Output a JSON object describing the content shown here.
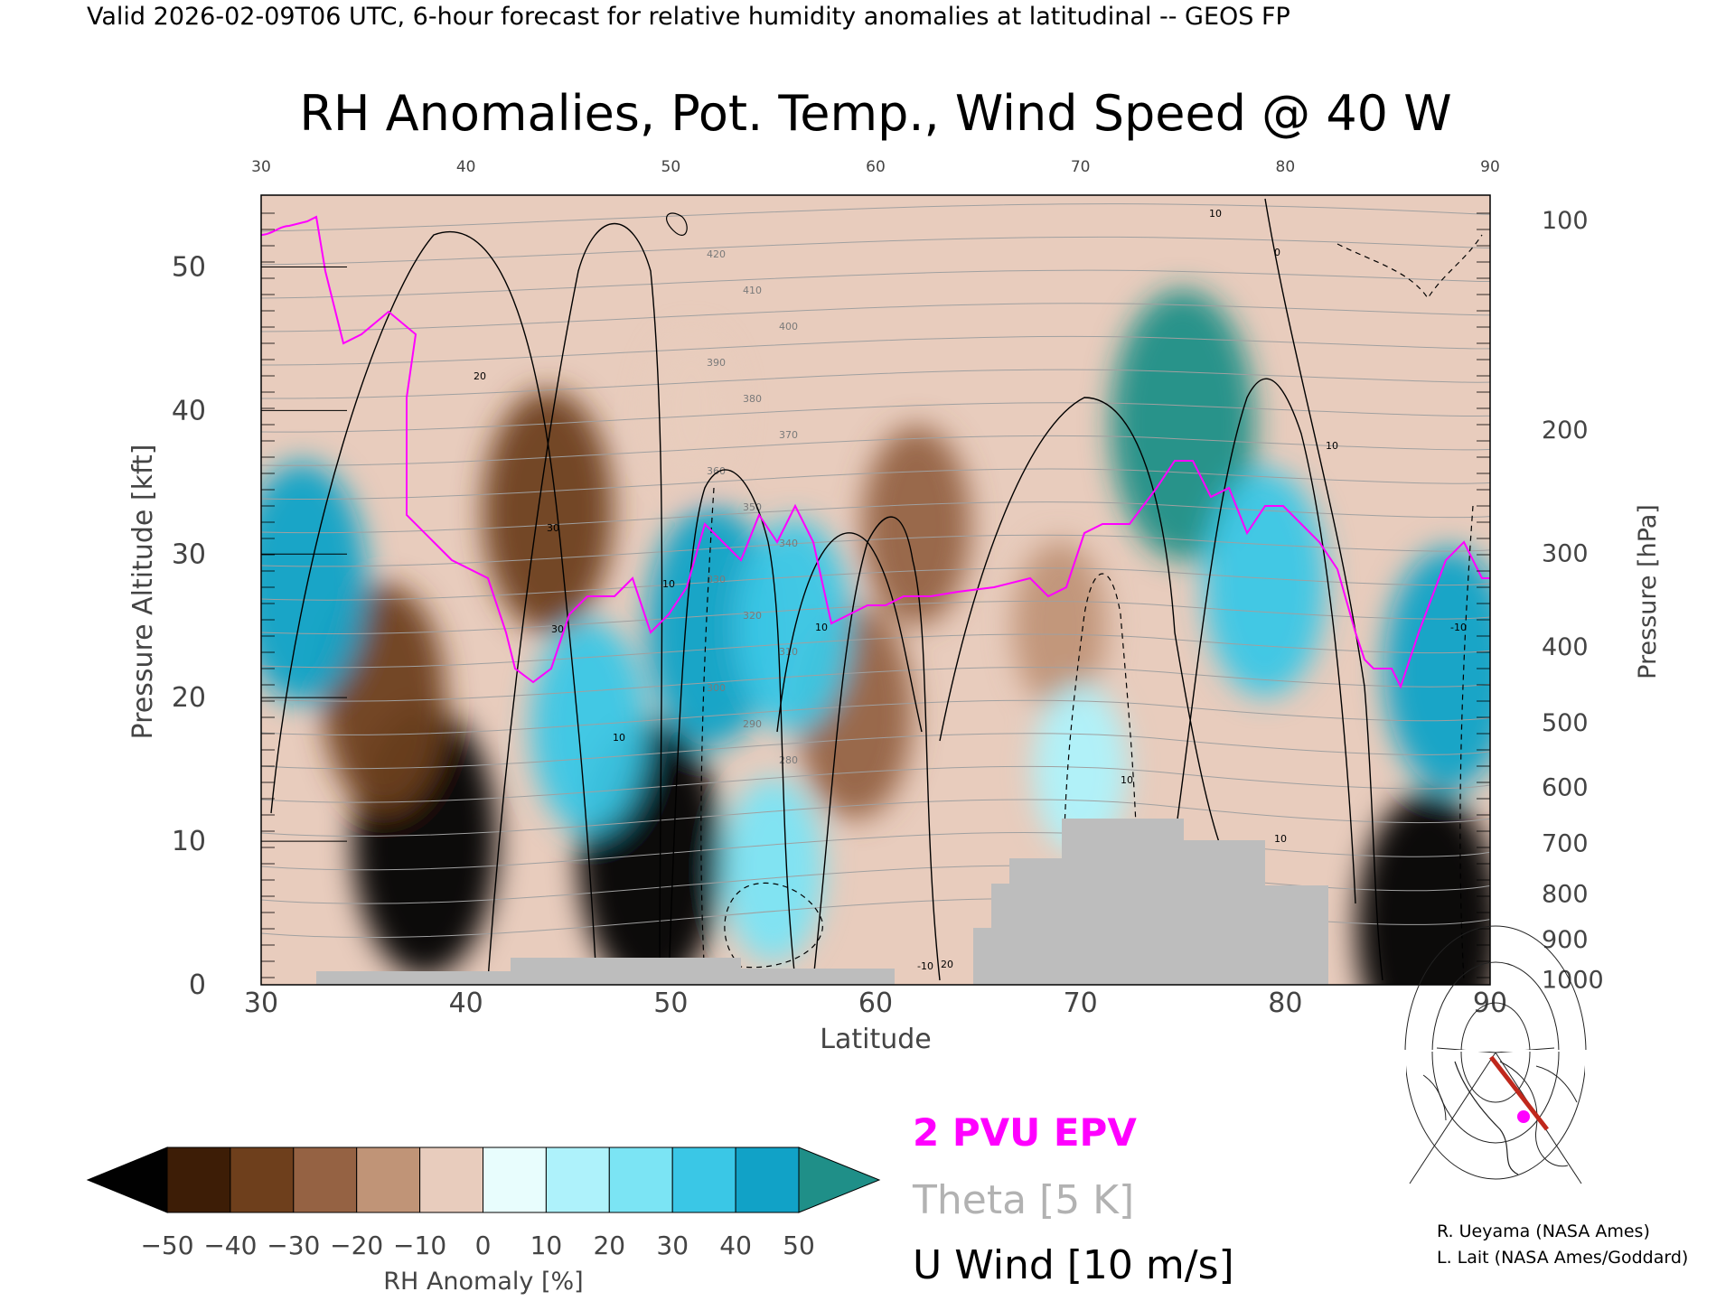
{
  "header": "Valid 2026-02-09T06 UTC, 6-hour forecast for relative humidity anomalies at latitudinal -- GEOS FP",
  "chart_data": {
    "type": "heatmap",
    "title": "RH Anomalies, Pot. Temp., Wind Speed @ 40 W",
    "xlabel": "Latitude",
    "ylabel": "Pressure Altitude [kft]",
    "y2label": "Pressure [hPa]",
    "xlim": [
      30,
      90
    ],
    "ylim": [
      0,
      55
    ],
    "x_ticks": [
      "30",
      "40",
      "50",
      "60",
      "70",
      "80",
      "90"
    ],
    "y_ticks": [
      "0",
      "10",
      "20",
      "30",
      "40",
      "50"
    ],
    "pressure_ticks": [
      {
        "label": "100",
        "kft": 53.3
      },
      {
        "label": "200",
        "kft": 38.7
      },
      {
        "label": "300",
        "kft": 30.1
      },
      {
        "label": "400",
        "kft": 23.6
      },
      {
        "label": "500",
        "kft": 18.3
      },
      {
        "label": "600",
        "kft": 13.8
      },
      {
        "label": "700",
        "kft": 9.9
      },
      {
        "label": "800",
        "kft": 6.4
      },
      {
        "label": "900",
        "kft": 3.2
      },
      {
        "label": "1000",
        "kft": 0.4
      }
    ],
    "colorbar": {
      "label": "RH Anomaly [%]",
      "ticks": [
        "−50",
        "−40",
        "−30",
        "−20",
        "−10",
        "0",
        "10",
        "20",
        "30",
        "40",
        "50"
      ],
      "colors": [
        "#010101",
        "#3d1d06",
        "#6e3f1c",
        "#956243",
        "#c09477",
        "#e8ccbd",
        "#e8fdfd",
        "#aef2fb",
        "#7be4f4",
        "#3ac7e6",
        "#11a2c7",
        "#0d6f94",
        "#1f8f88"
      ]
    },
    "legend": [
      {
        "label": "2 PVU EPV",
        "color": "#ff00ff"
      },
      {
        "label": "Theta [5 K]",
        "color": "#b2b2b2"
      },
      {
        "label": "U Wind [10 m/s]",
        "color": "#000000"
      }
    ],
    "theta_labels": [
      "420",
      "410",
      "400",
      "390",
      "380",
      "370",
      "360",
      "350",
      "340",
      "330",
      "320",
      "310",
      "300",
      "290",
      "280"
    ],
    "wind_labels": [
      "0",
      "10",
      "10",
      "20",
      "30",
      "30",
      "10",
      "10",
      "10",
      "10",
      "10",
      "20",
      "-10",
      "-10"
    ],
    "anomaly_regions": [
      {
        "lat": 38,
        "kft": 10,
        "rh": -55
      },
      {
        "lat": 49,
        "kft": 9,
        "rh": -50
      },
      {
        "lat": 87,
        "kft": 4,
        "rh": -55
      },
      {
        "lat": 44,
        "kft": 33,
        "rh": -40
      },
      {
        "lat": 36,
        "kft": 20,
        "rh": -35
      },
      {
        "lat": 59,
        "kft": 19,
        "rh": -30
      },
      {
        "lat": 62,
        "kft": 32,
        "rh": -25
      },
      {
        "lat": 69,
        "kft": 25,
        "rh": -15
      },
      {
        "lat": 51,
        "kft": 40,
        "rh": -10
      },
      {
        "lat": 75,
        "kft": 39,
        "rh": 60
      },
      {
        "lat": 52,
        "kft": 25,
        "rh": 40
      },
      {
        "lat": 32,
        "kft": 28,
        "rh": 40
      },
      {
        "lat": 79,
        "kft": 28,
        "rh": 35
      },
      {
        "lat": 88,
        "kft": 22,
        "rh": 40
      },
      {
        "lat": 46,
        "kft": 18,
        "rh": 30
      },
      {
        "lat": 56,
        "kft": 25,
        "rh": 30
      },
      {
        "lat": 55,
        "kft": 8,
        "rh": 20
      },
      {
        "lat": 70,
        "kft": 15,
        "rh": 15
      }
    ]
  },
  "credits": [
    "R. Ueyama (NASA Ames)",
    "L. Lait (NASA Ames/Goddard)"
  ],
  "inset": {
    "name": "cross-section location map",
    "track_color": "#c0281c",
    "marker_color": "#ff00ff"
  }
}
